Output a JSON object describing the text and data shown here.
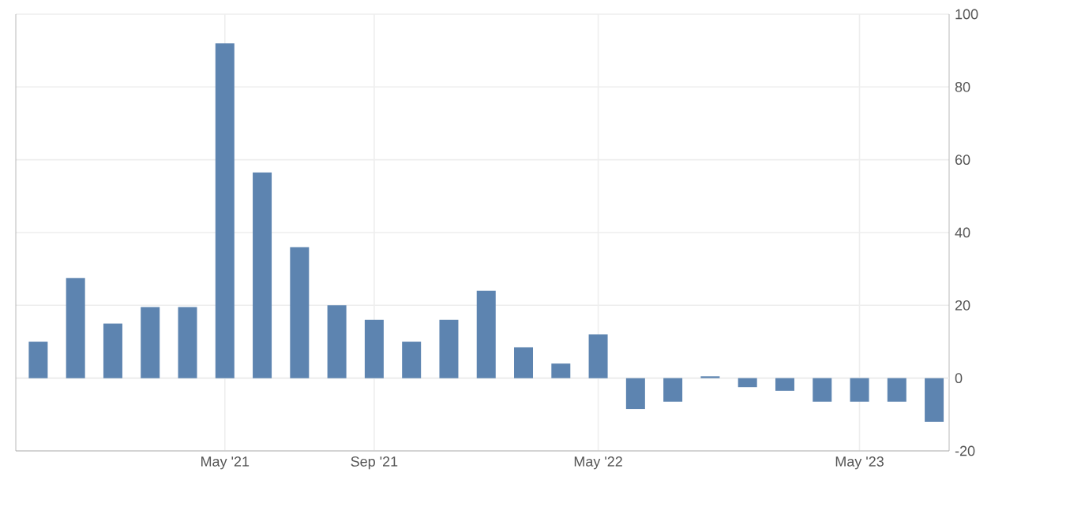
{
  "chart_data": {
    "type": "bar",
    "categories": [
      null,
      null,
      null,
      null,
      null,
      "May '21",
      null,
      null,
      null,
      "Sep '21",
      null,
      null,
      null,
      null,
      null,
      "May '22",
      null,
      null,
      null,
      null,
      null,
      null,
      "May '23",
      null,
      null
    ],
    "values": [
      10,
      27.5,
      15,
      19.5,
      19.5,
      92,
      56.5,
      36,
      20,
      16,
      10,
      16,
      24,
      8.5,
      4,
      12,
      -8.5,
      -6.5,
      0.5,
      -2.5,
      -3.5,
      -6.5,
      -6.5,
      -6.5,
      -12
    ],
    "color": "#5d84b0",
    "ylim": [
      -20,
      100
    ],
    "yticks": [
      -20,
      0,
      20,
      40,
      60,
      80,
      100
    ],
    "grid": true
  }
}
